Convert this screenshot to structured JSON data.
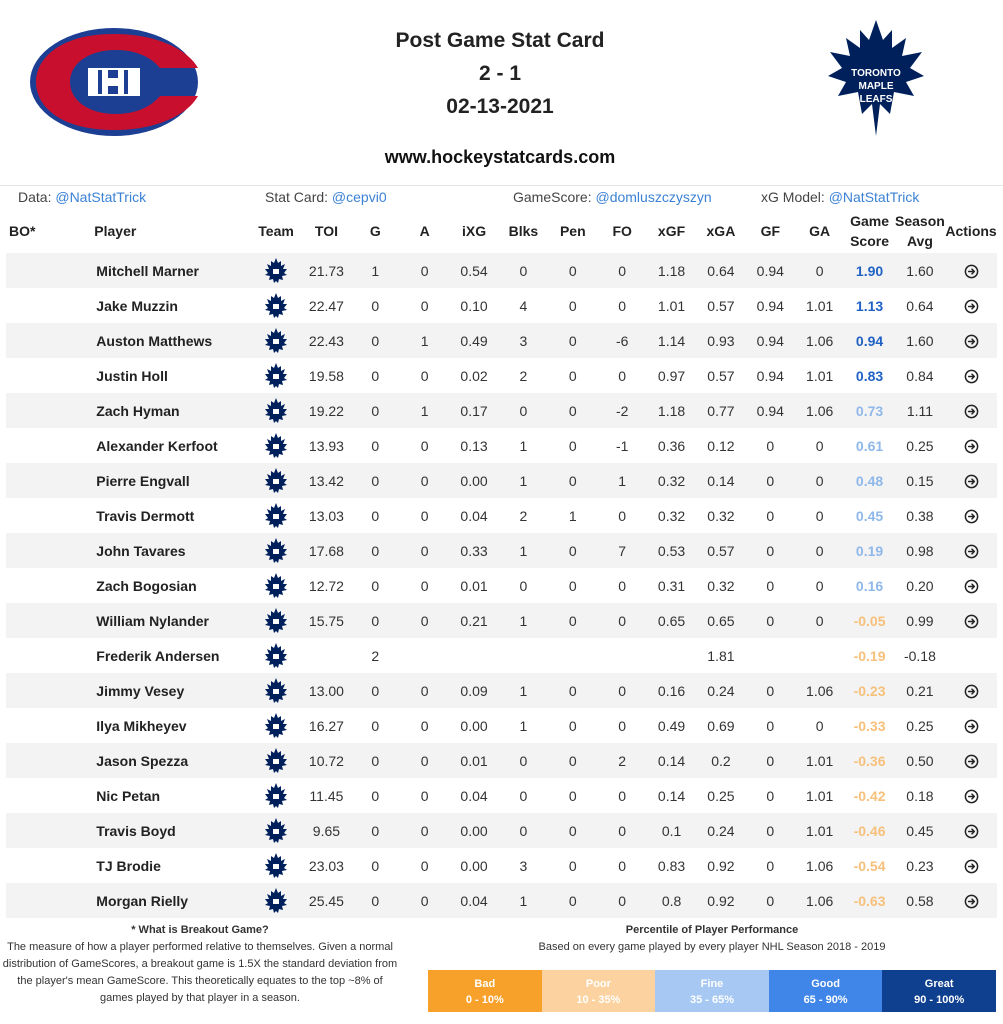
{
  "header": {
    "title": "Post Game Stat Card",
    "score": "2 - 1",
    "date": "02-13-2021",
    "site": "www.hockeystatcards.com",
    "home_logo_text": "TORONTO MAPLE LEAFS"
  },
  "credits": [
    {
      "label": "Data:",
      "handle": "@NatStatTrick"
    },
    {
      "label": "Stat Card:",
      "handle": "@cepvi0"
    },
    {
      "label": "GameScore:",
      "handle": "@domluszczyszyn"
    },
    {
      "label": "xG Model:",
      "handle": "@NatStatTrick"
    }
  ],
  "columns": {
    "bo": "BO*",
    "player": "Player",
    "team": "Team",
    "toi": "TOI",
    "g": "G",
    "a": "A",
    "ixg": "iXG",
    "blks": "Blks",
    "pen": "Pen",
    "fo": "FO",
    "xgf": "xGF",
    "xga": "xGA",
    "gf": "GF",
    "ga": "GA",
    "game_score_1": "Game",
    "game_score_2": "Score",
    "season_avg_1": "Season",
    "season_avg_2": "Avg",
    "actions": "Actions"
  },
  "rows": [
    {
      "player": "Mitchell Marner",
      "toi": "21.73",
      "g": "1",
      "a": "0",
      "ixg": "0.54",
      "blks": "0",
      "pen": "0",
      "fo": "0",
      "xgf": "1.18",
      "xga": "0.64",
      "gf": "0.94",
      "ga": "0",
      "gs": "1.90",
      "avg": "1.60",
      "action": true
    },
    {
      "player": "Jake Muzzin",
      "toi": "22.47",
      "g": "0",
      "a": "0",
      "ixg": "0.10",
      "blks": "4",
      "pen": "0",
      "fo": "0",
      "xgf": "1.01",
      "xga": "0.57",
      "gf": "0.94",
      "ga": "1.01",
      "gs": "1.13",
      "avg": "0.64",
      "action": true
    },
    {
      "player": "Auston Matthews",
      "toi": "22.43",
      "g": "0",
      "a": "1",
      "ixg": "0.49",
      "blks": "3",
      "pen": "0",
      "fo": "-6",
      "xgf": "1.14",
      "xga": "0.93",
      "gf": "0.94",
      "ga": "1.06",
      "gs": "0.94",
      "avg": "1.60",
      "action": true
    },
    {
      "player": "Justin Holl",
      "toi": "19.58",
      "g": "0",
      "a": "0",
      "ixg": "0.02",
      "blks": "2",
      "pen": "0",
      "fo": "0",
      "xgf": "0.97",
      "xga": "0.57",
      "gf": "0.94",
      "ga": "1.01",
      "gs": "0.83",
      "avg": "0.84",
      "action": true
    },
    {
      "player": "Zach Hyman",
      "toi": "19.22",
      "g": "0",
      "a": "1",
      "ixg": "0.17",
      "blks": "0",
      "pen": "0",
      "fo": "-2",
      "xgf": "1.18",
      "xga": "0.77",
      "gf": "0.94",
      "ga": "1.06",
      "gs": "0.73",
      "avg": "1.11",
      "action": true
    },
    {
      "player": "Alexander Kerfoot",
      "toi": "13.93",
      "g": "0",
      "a": "0",
      "ixg": "0.13",
      "blks": "1",
      "pen": "0",
      "fo": "-1",
      "xgf": "0.36",
      "xga": "0.12",
      "gf": "0",
      "ga": "0",
      "gs": "0.61",
      "avg": "0.25",
      "action": true
    },
    {
      "player": "Pierre Engvall",
      "toi": "13.42",
      "g": "0",
      "a": "0",
      "ixg": "0.00",
      "blks": "1",
      "pen": "0",
      "fo": "1",
      "xgf": "0.32",
      "xga": "0.14",
      "gf": "0",
      "ga": "0",
      "gs": "0.48",
      "avg": "0.15",
      "action": true
    },
    {
      "player": "Travis Dermott",
      "toi": "13.03",
      "g": "0",
      "a": "0",
      "ixg": "0.04",
      "blks": "2",
      "pen": "1",
      "fo": "0",
      "xgf": "0.32",
      "xga": "0.32",
      "gf": "0",
      "ga": "0",
      "gs": "0.45",
      "avg": "0.38",
      "action": true
    },
    {
      "player": "John Tavares",
      "toi": "17.68",
      "g": "0",
      "a": "0",
      "ixg": "0.33",
      "blks": "1",
      "pen": "0",
      "fo": "7",
      "xgf": "0.53",
      "xga": "0.57",
      "gf": "0",
      "ga": "0",
      "gs": "0.19",
      "avg": "0.98",
      "action": true
    },
    {
      "player": "Zach Bogosian",
      "toi": "12.72",
      "g": "0",
      "a": "0",
      "ixg": "0.01",
      "blks": "0",
      "pen": "0",
      "fo": "0",
      "xgf": "0.31",
      "xga": "0.32",
      "gf": "0",
      "ga": "0",
      "gs": "0.16",
      "avg": "0.20",
      "action": true
    },
    {
      "player": "William Nylander",
      "toi": "15.75",
      "g": "0",
      "a": "0",
      "ixg": "0.21",
      "blks": "1",
      "pen": "0",
      "fo": "0",
      "xgf": "0.65",
      "xga": "0.65",
      "gf": "0",
      "ga": "0",
      "gs": "-0.05",
      "avg": "0.99",
      "action": true
    },
    {
      "player": "Frederik Andersen",
      "toi": "",
      "g": "2",
      "a": "",
      "ixg": "",
      "blks": "",
      "pen": "",
      "fo": "",
      "xgf": "",
      "xga": "1.81",
      "gf": "",
      "ga": "",
      "gs": "-0.19",
      "avg": "-0.18",
      "action": false
    },
    {
      "player": "Jimmy Vesey",
      "toi": "13.00",
      "g": "0",
      "a": "0",
      "ixg": "0.09",
      "blks": "1",
      "pen": "0",
      "fo": "0",
      "xgf": "0.16",
      "xga": "0.24",
      "gf": "0",
      "ga": "1.06",
      "gs": "-0.23",
      "avg": "0.21",
      "action": true
    },
    {
      "player": "Ilya Mikheyev",
      "toi": "16.27",
      "g": "0",
      "a": "0",
      "ixg": "0.00",
      "blks": "1",
      "pen": "0",
      "fo": "0",
      "xgf": "0.49",
      "xga": "0.69",
      "gf": "0",
      "ga": "0",
      "gs": "-0.33",
      "avg": "0.25",
      "action": true
    },
    {
      "player": "Jason Spezza",
      "toi": "10.72",
      "g": "0",
      "a": "0",
      "ixg": "0.01",
      "blks": "0",
      "pen": "0",
      "fo": "2",
      "xgf": "0.14",
      "xga": "0.2",
      "gf": "0",
      "ga": "1.01",
      "gs": "-0.36",
      "avg": "0.50",
      "action": true
    },
    {
      "player": "Nic Petan",
      "toi": "11.45",
      "g": "0",
      "a": "0",
      "ixg": "0.04",
      "blks": "0",
      "pen": "0",
      "fo": "0",
      "xgf": "0.14",
      "xga": "0.25",
      "gf": "0",
      "ga": "1.01",
      "gs": "-0.42",
      "avg": "0.18",
      "action": true
    },
    {
      "player": "Travis Boyd",
      "toi": "9.65",
      "g": "0",
      "a": "0",
      "ixg": "0.00",
      "blks": "0",
      "pen": "0",
      "fo": "0",
      "xgf": "0.1",
      "xga": "0.24",
      "gf": "0",
      "ga": "1.01",
      "gs": "-0.46",
      "avg": "0.45",
      "action": true
    },
    {
      "player": "TJ Brodie",
      "toi": "23.03",
      "g": "0",
      "a": "0",
      "ixg": "0.00",
      "blks": "3",
      "pen": "0",
      "fo": "0",
      "xgf": "0.83",
      "xga": "0.92",
      "gf": "0",
      "ga": "1.06",
      "gs": "-0.54",
      "avg": "0.23",
      "action": true
    },
    {
      "player": "Morgan Rielly",
      "toi": "25.45",
      "g": "0",
      "a": "0",
      "ixg": "0.04",
      "blks": "1",
      "pen": "0",
      "fo": "0",
      "xgf": "0.8",
      "xga": "0.92",
      "gf": "0",
      "ga": "1.06",
      "gs": "-0.63",
      "avg": "0.58",
      "action": true
    }
  ],
  "gs_colors": {
    "great": "#1f61c4",
    "good": "#4d8be0",
    "fine": "#8fb8ea",
    "poor": "#f7c07a",
    "bad": "#f0a030"
  },
  "footer": {
    "breakout_title": "* What is Breakout Game?",
    "breakout_lines": [
      "The measure of how a player performed relative to themselves. Given a normal",
      "distribution of GameScores, a breakout game is 1.5X the standard deviation from",
      "the player's mean GameScore. This theoretically equates to the top ~8% of",
      "games played by that player in a season."
    ],
    "percentile_title": "Percentile of Player Performance",
    "percentile_sub": "Based on every game played by every player NHL Season 2018 - 2019",
    "legend": [
      {
        "label": "Bad",
        "range": "0 - 10%",
        "color": "#f7a02a"
      },
      {
        "label": "Poor",
        "range": "10 - 35%",
        "color": "#fcd3a0"
      },
      {
        "label": "Fine",
        "range": "35 - 65%",
        "color": "#a6c8f2"
      },
      {
        "label": "Good",
        "range": "65 - 90%",
        "color": "#3f86e8"
      },
      {
        "label": "Great",
        "range": "90 - 100%",
        "color": "#0f3f8f"
      }
    ]
  }
}
